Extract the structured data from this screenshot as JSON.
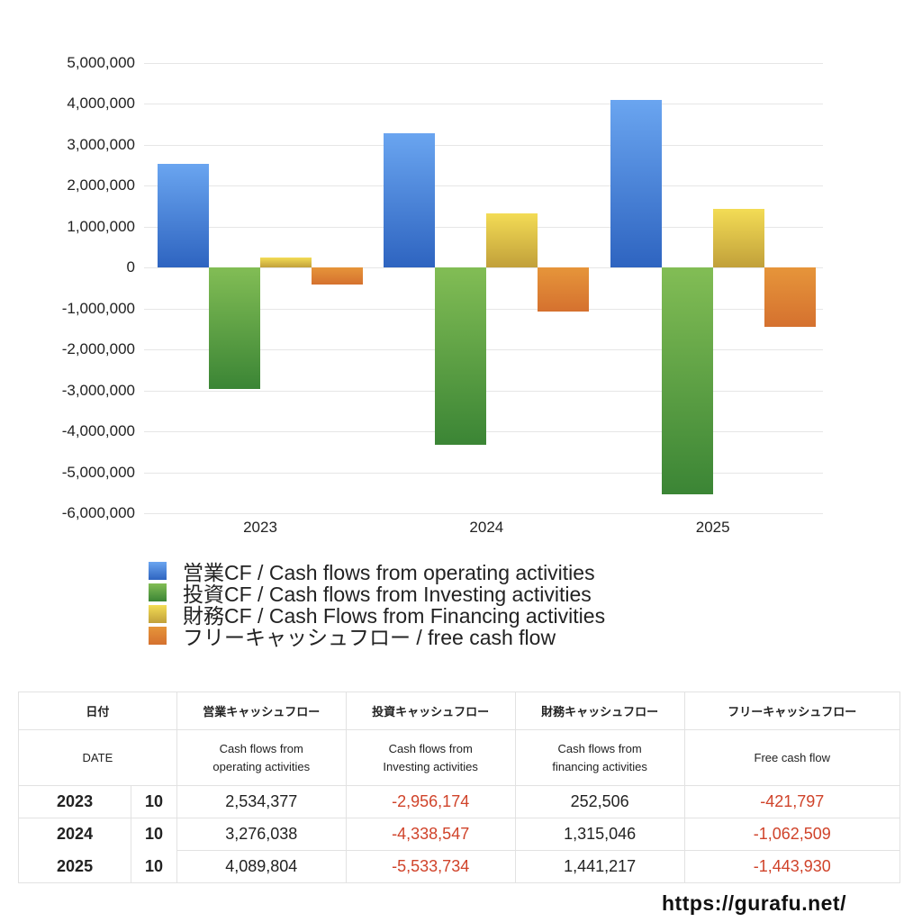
{
  "chart_data": {
    "type": "bar",
    "title": "",
    "xlabel": "",
    "ylabel": "",
    "categories": [
      "2023",
      "2024",
      "2025"
    ],
    "series": [
      {
        "name": "営業CF / Cash flows from operating activities",
        "color": "#4a86de",
        "values": [
          2534377,
          3276038,
          4089804
        ]
      },
      {
        "name": "投資CF / Cash flows from Investing activities",
        "color": "#5aa548",
        "values": [
          -2956174,
          -4338547,
          -5533734
        ]
      },
      {
        "name": "財務CF / Cash Flows from Financing activities",
        "color": "#e0c646",
        "values": [
          252506,
          1315046,
          1441217
        ]
      },
      {
        "name": "フリーキャッシュフロー / free cash flow",
        "color": "#e07e35",
        "values": [
          -421797,
          -1062509,
          -1443930
        ]
      }
    ],
    "ylim": [
      -6000000,
      5000000
    ],
    "yticks": [
      "5,000,000",
      "4,000,000",
      "3,000,000",
      "2,000,000",
      "1,000,000",
      "0",
      "-1,000,000",
      "-2,000,000",
      "-3,000,000",
      "-4,000,000",
      "-5,000,000",
      "-6,000,000"
    ],
    "grid": true,
    "legend_position": "bottom"
  },
  "legend": [
    {
      "label": "営業CF / Cash flows from operating activities"
    },
    {
      "label": "投資CF / Cash flows from Investing activities"
    },
    {
      "label": "財務CF / Cash Flows from Financing activities"
    },
    {
      "label": "フリーキャッシュフロー / free cash flow"
    }
  ],
  "table": {
    "headers_jp": [
      "日付",
      "営業キャッシュフロー",
      "投資キャッシュフロー",
      "財務キャッシュフロー",
      "フリーキャッシュフロー"
    ],
    "headers_en": [
      "DATE",
      "Cash flows from\noperating activities",
      "Cash flows from\nInvesting activities",
      "Cash flows from\nfinancing activities",
      "Free cash flow"
    ],
    "rows": [
      {
        "year": "2023",
        "month": "10",
        "operating": "2,534,377",
        "investing": "-2,956,174",
        "financing": "252,506",
        "free": "-421,797"
      },
      {
        "year": "2024",
        "month": "10",
        "operating": "3,276,038",
        "investing": "-4,338,547",
        "financing": "1,315,046",
        "free": "-1,062,509"
      },
      {
        "year": "2025",
        "month": "10",
        "operating": "4,089,804",
        "investing": "-5,533,734",
        "financing": "1,441,217",
        "free": "-1,443,930"
      }
    ]
  },
  "footer": {
    "url": "https://gurafu.net/"
  }
}
